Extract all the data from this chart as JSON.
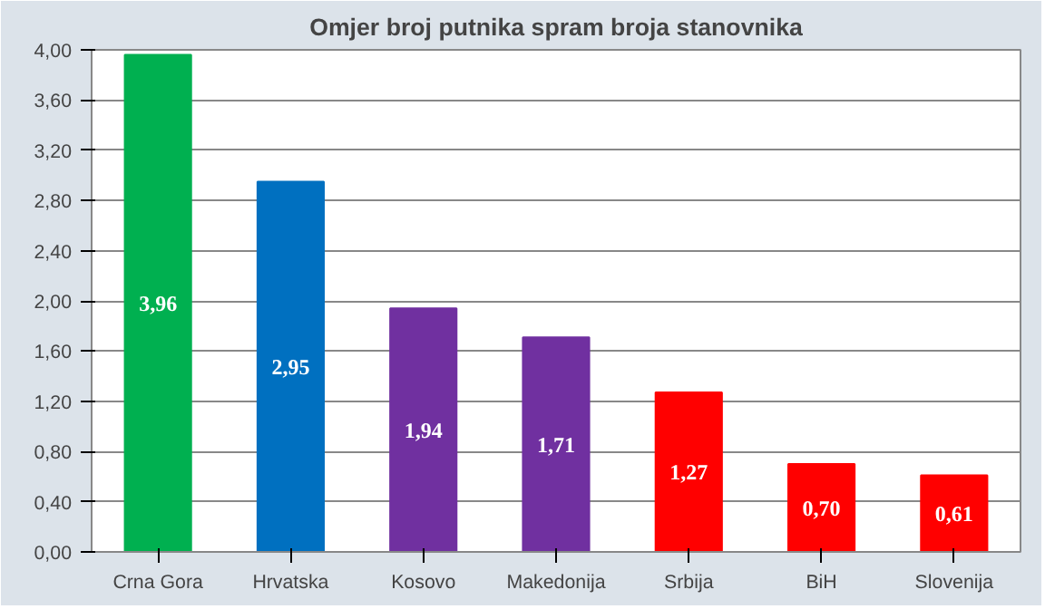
{
  "chart_data": {
    "type": "bar",
    "title": "Omjer broj putnika spram broja stanovnika",
    "categories": [
      "Crna Gora",
      "Hrvatska",
      "Kosovo",
      "Makedonija",
      "Srbija",
      "BiH",
      "Slovenija"
    ],
    "values": [
      3.96,
      2.95,
      1.94,
      1.71,
      1.27,
      0.7,
      0.61
    ],
    "value_labels": [
      "3,96",
      "2,95",
      "1,94",
      "1,71",
      "1,27",
      "0,70",
      "0,61"
    ],
    "colors": [
      "#00b050",
      "#0070c0",
      "#7030a0",
      "#7030a0",
      "#ff0000",
      "#ff0000",
      "#ff0000"
    ],
    "ylim": [
      0,
      4
    ],
    "yticks": [
      {
        "value": 0,
        "label": "0,00"
      },
      {
        "value": 0.4,
        "label": "0,40"
      },
      {
        "value": 0.8,
        "label": "0,80"
      },
      {
        "value": 1.2,
        "label": "1,20"
      },
      {
        "value": 1.6,
        "label": "1,60"
      },
      {
        "value": 2.0,
        "label": "2,00"
      },
      {
        "value": 2.4,
        "label": "2,40"
      },
      {
        "value": 2.8,
        "label": "2,80"
      },
      {
        "value": 3.2,
        "label": "3,20"
      },
      {
        "value": 3.6,
        "label": "3,60"
      },
      {
        "value": 4.0,
        "label": "4,00"
      }
    ],
    "grid": "y"
  }
}
